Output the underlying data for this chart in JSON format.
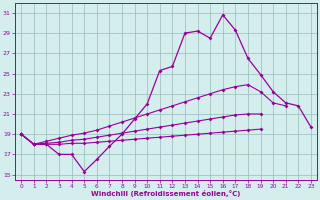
{
  "xlabel": "Windchill (Refroidissement éolien,°C)",
  "x_values": [
    0,
    1,
    2,
    3,
    4,
    5,
    6,
    7,
    8,
    9,
    10,
    11,
    12,
    13,
    14,
    15,
    16,
    17,
    18,
    19,
    20,
    21,
    22,
    23
  ],
  "line_main": [
    19.0,
    18.0,
    18.0,
    17.0,
    17.0,
    15.3,
    16.5,
    17.8,
    19.0,
    20.5,
    22.0,
    25.3,
    25.7,
    29.0,
    29.2,
    28.5,
    30.8,
    29.3,
    26.5,
    24.9,
    23.2,
    22.1,
    21.8,
    19.7
  ],
  "line_upper": [
    19.0,
    18.0,
    18.3,
    18.6,
    18.9,
    19.1,
    19.4,
    19.8,
    20.2,
    20.6,
    21.0,
    21.4,
    21.8,
    22.2,
    22.6,
    23.0,
    23.4,
    23.7,
    23.9,
    23.2,
    22.1,
    21.8,
    null,
    null
  ],
  "line_mid": [
    19.0,
    18.0,
    18.1,
    18.2,
    18.4,
    18.5,
    18.7,
    18.9,
    19.1,
    19.3,
    19.5,
    19.7,
    19.9,
    20.1,
    20.3,
    20.5,
    20.7,
    20.9,
    21.0,
    21.0,
    null,
    null,
    null,
    null
  ],
  "line_lower": [
    19.0,
    18.0,
    18.0,
    18.0,
    18.1,
    18.1,
    18.2,
    18.3,
    18.4,
    18.5,
    18.6,
    18.7,
    18.8,
    18.9,
    19.0,
    19.1,
    19.2,
    19.3,
    19.4,
    19.5,
    null,
    null,
    null,
    null
  ],
  "bg_color": "#d4eeee",
  "line_color": "#990099",
  "grid_color": "#99bbbb",
  "ylim": [
    14.5,
    32
  ],
  "yticks": [
    15,
    17,
    19,
    21,
    23,
    25,
    27,
    29,
    31
  ],
  "xlim": [
    -0.5,
    23.5
  ]
}
